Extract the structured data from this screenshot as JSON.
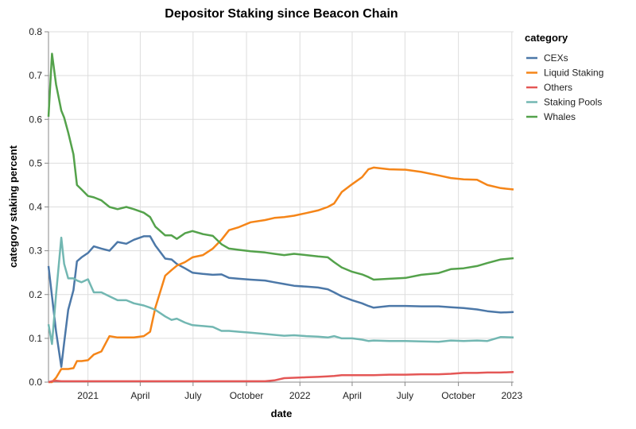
{
  "chart_data": {
    "type": "line",
    "title": "Depositor Staking since Beacon Chain",
    "xlabel": "date",
    "ylabel": "category staking percent",
    "ylim": [
      0,
      0.8
    ],
    "yticks": [
      "0.0",
      "0.1",
      "0.2",
      "0.3",
      "0.4",
      "0.5",
      "0.6",
      "0.7",
      "0.8"
    ],
    "xlim": [
      "2020-10-25",
      "2023-01-04"
    ],
    "xticks": [
      {
        "date": "2021-01-01",
        "label": "2021"
      },
      {
        "date": "2021-04-01",
        "label": "April"
      },
      {
        "date": "2021-07-01",
        "label": "July"
      },
      {
        "date": "2021-10-01",
        "label": "October"
      },
      {
        "date": "2022-01-01",
        "label": "2022"
      },
      {
        "date": "2022-04-01",
        "label": "April"
      },
      {
        "date": "2022-07-01",
        "label": "July"
      },
      {
        "date": "2022-10-01",
        "label": "October"
      },
      {
        "date": "2023-01-01",
        "label": "2023"
      }
    ],
    "grid": true,
    "legend": {
      "title": "category",
      "placement": "right"
    },
    "x": [
      "2020-10-25",
      "2020-10-31",
      "2020-11-07",
      "2020-11-16",
      "2020-11-21",
      "2020-11-28",
      "2020-12-07",
      "2020-12-13",
      "2020-12-21",
      "2021-01-01",
      "2021-01-11",
      "2021-01-24",
      "2021-02-07",
      "2021-02-21",
      "2021-03-08",
      "2021-03-21",
      "2021-04-07",
      "2021-04-18",
      "2021-04-27",
      "2021-05-14",
      "2021-05-25",
      "2021-06-03",
      "2021-06-17",
      "2021-06-30",
      "2021-07-18",
      "2021-08-04",
      "2021-08-19",
      "2021-09-01",
      "2021-09-18",
      "2021-10-08",
      "2021-11-02",
      "2021-11-18",
      "2021-12-05",
      "2021-12-22",
      "2022-01-12",
      "2022-02-01",
      "2022-02-18",
      "2022-03-01",
      "2022-03-14",
      "2022-04-01",
      "2022-04-18",
      "2022-04-29",
      "2022-05-08",
      "2022-06-04",
      "2022-07-02",
      "2022-07-29",
      "2022-08-28",
      "2022-09-18",
      "2022-10-10",
      "2022-11-02",
      "2022-11-20",
      "2022-12-13",
      "2023-01-04"
    ],
    "series": [
      {
        "name": "CEXs",
        "color": "#4c78a8",
        "values": [
          0.265,
          0.196,
          0.116,
          0.035,
          0.09,
          0.165,
          0.21,
          0.276,
          0.285,
          0.295,
          0.31,
          0.305,
          0.3,
          0.32,
          0.316,
          0.325,
          0.333,
          0.333,
          0.312,
          0.282,
          0.28,
          0.27,
          0.26,
          0.25,
          0.247,
          0.245,
          0.246,
          0.238,
          0.236,
          0.234,
          0.232,
          0.228,
          0.224,
          0.22,
          0.218,
          0.216,
          0.212,
          0.205,
          0.196,
          0.187,
          0.18,
          0.174,
          0.17,
          0.174,
          0.174,
          0.173,
          0.173,
          0.171,
          0.169,
          0.166,
          0.162,
          0.159,
          0.16
        ]
      },
      {
        "name": "Liquid Staking",
        "color": "#f58518",
        "values": [
          0,
          0,
          0.01,
          0.03,
          0.03,
          0.03,
          0.032,
          0.048,
          0.048,
          0.05,
          0.063,
          0.07,
          0.105,
          0.102,
          0.102,
          0.102,
          0.105,
          0.115,
          0.17,
          0.243,
          0.256,
          0.266,
          0.274,
          0.285,
          0.29,
          0.305,
          0.325,
          0.347,
          0.354,
          0.365,
          0.37,
          0.375,
          0.377,
          0.38,
          0.386,
          0.392,
          0.4,
          0.408,
          0.434,
          0.452,
          0.468,
          0.486,
          0.49,
          0.486,
          0.485,
          0.48,
          0.472,
          0.466,
          0.463,
          0.462,
          0.45,
          0.443,
          0.44
        ]
      },
      {
        "name": "Others",
        "color": "#e45756",
        "values": [
          0,
          0.002,
          0.003,
          0.002,
          0.002,
          0.002,
          0.002,
          0.002,
          0.002,
          0.002,
          0.002,
          0.002,
          0.002,
          0.002,
          0.002,
          0.002,
          0.002,
          0.002,
          0.002,
          0.002,
          0.002,
          0.002,
          0.002,
          0.002,
          0.002,
          0.002,
          0.002,
          0.002,
          0.002,
          0.002,
          0.002,
          0.004,
          0.009,
          0.01,
          0.011,
          0.012,
          0.013,
          0.014,
          0.016,
          0.016,
          0.016,
          0.016,
          0.016,
          0.017,
          0.017,
          0.018,
          0.018,
          0.019,
          0.021,
          0.021,
          0.022,
          0.022,
          0.023
        ]
      },
      {
        "name": "Staking Pools",
        "color": "#72b7b2",
        "values": [
          0.132,
          0.087,
          0.2,
          0.33,
          0.27,
          0.237,
          0.237,
          0.232,
          0.228,
          0.235,
          0.205,
          0.205,
          0.196,
          0.187,
          0.187,
          0.18,
          0.175,
          0.17,
          0.165,
          0.15,
          0.142,
          0.145,
          0.136,
          0.13,
          0.128,
          0.126,
          0.117,
          0.117,
          0.115,
          0.113,
          0.11,
          0.108,
          0.106,
          0.107,
          0.105,
          0.104,
          0.102,
          0.105,
          0.1,
          0.1,
          0.097,
          0.094,
          0.095,
          0.094,
          0.094,
          0.093,
          0.092,
          0.095,
          0.094,
          0.095,
          0.094,
          0.103,
          0.102
        ]
      },
      {
        "name": "Whales",
        "color": "#54a24b",
        "values": [
          0.606,
          0.75,
          0.68,
          0.62,
          0.604,
          0.57,
          0.52,
          0.45,
          0.44,
          0.425,
          0.422,
          0.415,
          0.4,
          0.395,
          0.4,
          0.395,
          0.387,
          0.377,
          0.355,
          0.335,
          0.335,
          0.327,
          0.34,
          0.345,
          0.338,
          0.334,
          0.315,
          0.305,
          0.302,
          0.299,
          0.296,
          0.293,
          0.29,
          0.293,
          0.29,
          0.287,
          0.285,
          0.274,
          0.262,
          0.252,
          0.246,
          0.24,
          0.234,
          0.236,
          0.238,
          0.245,
          0.249,
          0.258,
          0.26,
          0.265,
          0.272,
          0.28,
          0.283
        ]
      }
    ]
  }
}
